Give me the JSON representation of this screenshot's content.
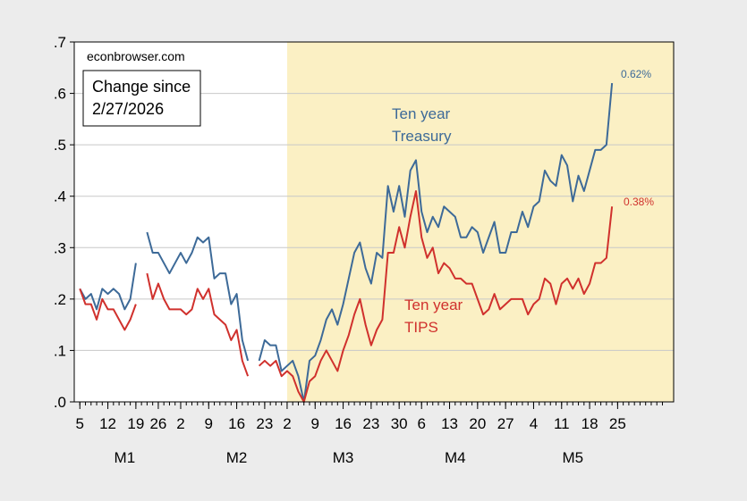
{
  "chart_data": {
    "type": "line",
    "source": "econbrowser.com",
    "legend_box": [
      "Change since",
      "2/27/2026"
    ],
    "ylim": [
      0,
      0.7
    ],
    "yticks": [
      {
        "v": 0.0,
        "label": ".0"
      },
      {
        "v": 0.1,
        "label": ".1"
      },
      {
        "v": 0.2,
        "label": ".2"
      },
      {
        "v": 0.3,
        "label": ".3"
      },
      {
        "v": 0.4,
        "label": ".4"
      },
      {
        "v": 0.5,
        "label": ".5"
      },
      {
        "v": 0.6,
        "label": ".6"
      },
      {
        "v": 0.7,
        "label": ".7"
      }
    ],
    "x_index_range": [
      -1,
      106
    ],
    "shaded_from_index": 37,
    "shade_color": "#fbf0c4",
    "xticks": [
      {
        "i": 0,
        "label": "5"
      },
      {
        "i": 5,
        "label": "12"
      },
      {
        "i": 10,
        "label": "19"
      },
      {
        "i": 14,
        "label": "26"
      },
      {
        "i": 18,
        "label": "2"
      },
      {
        "i": 23,
        "label": "9"
      },
      {
        "i": 28,
        "label": "16"
      },
      {
        "i": 33,
        "label": "23"
      },
      {
        "i": 37,
        "label": "2"
      },
      {
        "i": 42,
        "label": "9"
      },
      {
        "i": 47,
        "label": "16"
      },
      {
        "i": 52,
        "label": "23"
      },
      {
        "i": 57,
        "label": "30"
      },
      {
        "i": 61,
        "label": "6"
      },
      {
        "i": 66,
        "label": "13"
      },
      {
        "i": 71,
        "label": "20"
      },
      {
        "i": 76,
        "label": "27"
      },
      {
        "i": 81,
        "label": "4"
      },
      {
        "i": 86,
        "label": "11"
      },
      {
        "i": 91,
        "label": "18"
      },
      {
        "i": 96,
        "label": "25"
      }
    ],
    "months": [
      {
        "i": 8,
        "label": "M1"
      },
      {
        "i": 28,
        "label": "M2"
      },
      {
        "i": 47,
        "label": "M3"
      },
      {
        "i": 67,
        "label": "M4"
      },
      {
        "i": 88,
        "label": "M5"
      }
    ],
    "series": [
      {
        "name": "Ten year Treasury",
        "label_lines": [
          "Ten year",
          "Treasury"
        ],
        "color": "#3d6a98",
        "end_label": "0.62%",
        "points": [
          [
            0,
            0.22
          ],
          [
            1,
            0.2
          ],
          [
            2,
            0.21
          ],
          [
            3,
            0.18
          ],
          [
            4,
            0.22
          ],
          [
            5,
            0.21
          ],
          [
            6,
            0.22
          ],
          [
            7,
            0.21
          ],
          [
            8,
            0.18
          ],
          [
            9,
            0.2
          ],
          [
            10,
            0.27
          ],
          [
            12,
            0.33
          ],
          [
            13,
            0.29
          ],
          [
            14,
            0.29
          ],
          [
            15,
            0.27
          ],
          [
            16,
            0.25
          ],
          [
            17,
            0.27
          ],
          [
            18,
            0.29
          ],
          [
            19,
            0.27
          ],
          [
            20,
            0.29
          ],
          [
            21,
            0.32
          ],
          [
            22,
            0.31
          ],
          [
            23,
            0.32
          ],
          [
            24,
            0.24
          ],
          [
            25,
            0.25
          ],
          [
            26,
            0.25
          ],
          [
            27,
            0.19
          ],
          [
            28,
            0.21
          ],
          [
            29,
            0.12
          ],
          [
            30,
            0.08
          ],
          [
            32,
            0.08
          ],
          [
            33,
            0.12
          ],
          [
            34,
            0.11
          ],
          [
            35,
            0.11
          ],
          [
            36,
            0.06
          ],
          [
            37,
            0.07
          ],
          [
            38,
            0.08
          ],
          [
            39,
            0.05
          ],
          [
            40,
            0.0
          ],
          [
            41,
            0.08
          ],
          [
            42,
            0.09
          ],
          [
            43,
            0.12
          ],
          [
            44,
            0.16
          ],
          [
            45,
            0.18
          ],
          [
            46,
            0.15
          ],
          [
            47,
            0.19
          ],
          [
            48,
            0.24
          ],
          [
            49,
            0.29
          ],
          [
            50,
            0.31
          ],
          [
            51,
            0.26
          ],
          [
            52,
            0.23
          ],
          [
            53,
            0.29
          ],
          [
            54,
            0.28
          ],
          [
            55,
            0.42
          ],
          [
            56,
            0.37
          ],
          [
            57,
            0.42
          ],
          [
            58,
            0.36
          ],
          [
            59,
            0.45
          ],
          [
            60,
            0.47
          ],
          [
            61,
            0.37
          ],
          [
            62,
            0.33
          ],
          [
            63,
            0.36
          ],
          [
            64,
            0.34
          ],
          [
            65,
            0.38
          ],
          [
            66,
            0.37
          ],
          [
            67,
            0.36
          ],
          [
            68,
            0.32
          ],
          [
            69,
            0.32
          ],
          [
            70,
            0.34
          ],
          [
            71,
            0.33
          ],
          [
            72,
            0.29
          ],
          [
            73,
            0.32
          ],
          [
            74,
            0.35
          ],
          [
            75,
            0.29
          ],
          [
            76,
            0.29
          ],
          [
            77,
            0.33
          ],
          [
            78,
            0.33
          ],
          [
            79,
            0.37
          ],
          [
            80,
            0.34
          ],
          [
            81,
            0.38
          ],
          [
            82,
            0.39
          ],
          [
            83,
            0.45
          ],
          [
            84,
            0.43
          ],
          [
            85,
            0.42
          ],
          [
            86,
            0.48
          ],
          [
            87,
            0.46
          ],
          [
            88,
            0.39
          ],
          [
            89,
            0.44
          ],
          [
            90,
            0.41
          ],
          [
            91,
            0.45
          ],
          [
            92,
            0.49
          ],
          [
            93,
            0.49
          ],
          [
            94,
            0.5
          ],
          [
            95,
            0.62
          ]
        ]
      },
      {
        "name": "Ten year TIPS",
        "label_lines": [
          "Ten year",
          "TIPS"
        ],
        "color": "#d0312d",
        "end_label": "0.38%",
        "points": [
          [
            0,
            0.22
          ],
          [
            1,
            0.19
          ],
          [
            2,
            0.19
          ],
          [
            3,
            0.16
          ],
          [
            4,
            0.2
          ],
          [
            5,
            0.18
          ],
          [
            6,
            0.18
          ],
          [
            7,
            0.16
          ],
          [
            8,
            0.14
          ],
          [
            9,
            0.16
          ],
          [
            10,
            0.19
          ],
          [
            12,
            0.25
          ],
          [
            13,
            0.2
          ],
          [
            14,
            0.23
          ],
          [
            15,
            0.2
          ],
          [
            16,
            0.18
          ],
          [
            17,
            0.18
          ],
          [
            18,
            0.18
          ],
          [
            19,
            0.17
          ],
          [
            20,
            0.18
          ],
          [
            21,
            0.22
          ],
          [
            22,
            0.2
          ],
          [
            23,
            0.22
          ],
          [
            24,
            0.17
          ],
          [
            25,
            0.16
          ],
          [
            26,
            0.15
          ],
          [
            27,
            0.12
          ],
          [
            28,
            0.14
          ],
          [
            29,
            0.08
          ],
          [
            30,
            0.05
          ],
          [
            32,
            0.07
          ],
          [
            33,
            0.08
          ],
          [
            34,
            0.07
          ],
          [
            35,
            0.08
          ],
          [
            36,
            0.05
          ],
          [
            37,
            0.06
          ],
          [
            38,
            0.05
          ],
          [
            39,
            0.02
          ],
          [
            40,
            0.0
          ],
          [
            41,
            0.04
          ],
          [
            42,
            0.05
          ],
          [
            43,
            0.08
          ],
          [
            44,
            0.1
          ],
          [
            45,
            0.08
          ],
          [
            46,
            0.06
          ],
          [
            47,
            0.1
          ],
          [
            48,
            0.13
          ],
          [
            49,
            0.17
          ],
          [
            50,
            0.2
          ],
          [
            51,
            0.15
          ],
          [
            52,
            0.11
          ],
          [
            53,
            0.14
          ],
          [
            54,
            0.16
          ],
          [
            55,
            0.29
          ],
          [
            56,
            0.29
          ],
          [
            57,
            0.34
          ],
          [
            58,
            0.3
          ],
          [
            59,
            0.36
          ],
          [
            60,
            0.41
          ],
          [
            61,
            0.32
          ],
          [
            62,
            0.28
          ],
          [
            63,
            0.3
          ],
          [
            64,
            0.25
          ],
          [
            65,
            0.27
          ],
          [
            66,
            0.26
          ],
          [
            67,
            0.24
          ],
          [
            68,
            0.24
          ],
          [
            69,
            0.23
          ],
          [
            70,
            0.23
          ],
          [
            71,
            0.2
          ],
          [
            72,
            0.17
          ],
          [
            73,
            0.18
          ],
          [
            74,
            0.21
          ],
          [
            75,
            0.18
          ],
          [
            76,
            0.19
          ],
          [
            77,
            0.2
          ],
          [
            78,
            0.2
          ],
          [
            79,
            0.2
          ],
          [
            80,
            0.17
          ],
          [
            81,
            0.19
          ],
          [
            82,
            0.2
          ],
          [
            83,
            0.24
          ],
          [
            84,
            0.23
          ],
          [
            85,
            0.19
          ],
          [
            86,
            0.23
          ],
          [
            87,
            0.24
          ],
          [
            88,
            0.22
          ],
          [
            89,
            0.24
          ],
          [
            90,
            0.21
          ],
          [
            91,
            0.23
          ],
          [
            92,
            0.27
          ],
          [
            93,
            0.27
          ],
          [
            94,
            0.28
          ],
          [
            95,
            0.38
          ]
        ]
      }
    ]
  }
}
